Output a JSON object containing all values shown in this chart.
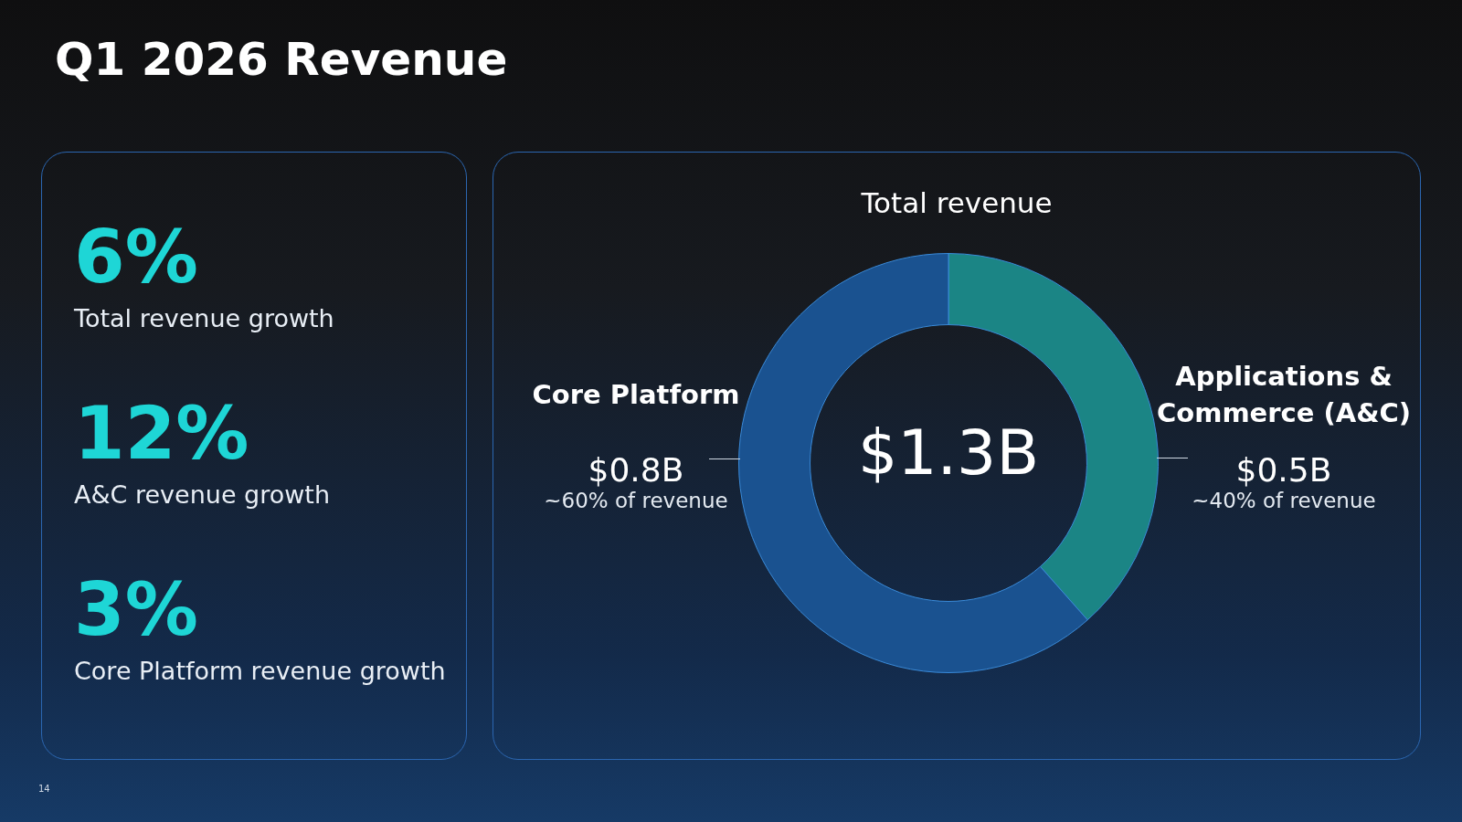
{
  "chart_data": [
    {
      "type": "other",
      "title": "Q1 2026 Revenue",
      "annotations": [
        "6%",
        "Total revenue growth",
        "12%",
        "A&C revenue growth",
        "3%",
        "Core Platform revenue growth",
        "14"
      ]
    },
    {
      "type": "donut",
      "title": "Total revenue",
      "categories": [
        "Applications & Commerce (A&C)",
        "Core Platform"
      ],
      "values": [
        0.5,
        0.8
      ],
      "colors": [
        "#1b8585",
        "#1a5290"
      ],
      "value_labels": [
        "$0.5B",
        "$0.8B"
      ],
      "annotations": [
        "~40% of revenue",
        "~60% of revenue",
        "$1.3B"
      ],
      "legend": false
    }
  ]
}
